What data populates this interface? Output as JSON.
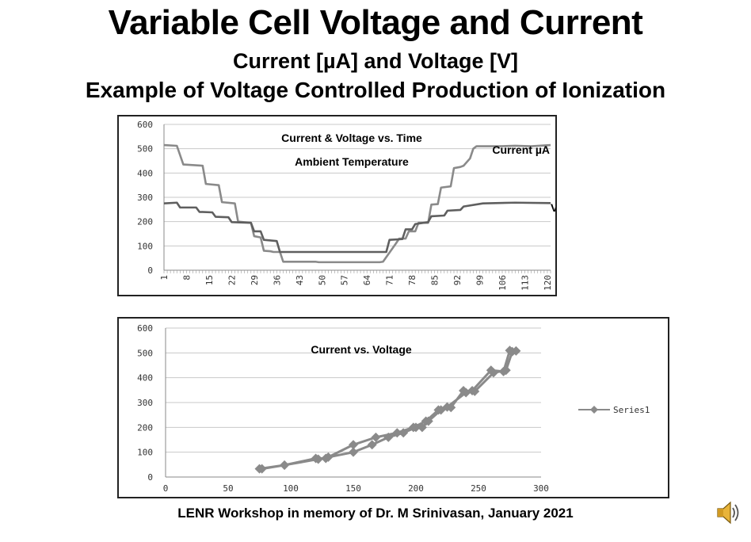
{
  "title": "Variable Cell Voltage and Current",
  "subtitle1": "Current [µA] and Voltage [V]",
  "subtitle2": "Example of Voltage Controlled Production of Ionization",
  "footer": "LENR Workshop in memory of Dr. M Srinivasan, January 2021",
  "speaker_icon": "speaker-icon",
  "colors": {
    "series_dark": "#5f5f5f",
    "series_light": "#8a8a8a",
    "grid": "#c8c8c8"
  },
  "chart_data": [
    {
      "type": "line",
      "title": "Current & Voltage vs. Time",
      "subtitle": "Ambient Temperature",
      "ylim": [
        0,
        600
      ],
      "yticks": [
        0,
        100,
        200,
        300,
        400,
        500,
        600
      ],
      "xticks": [
        1,
        8,
        15,
        22,
        29,
        36,
        43,
        50,
        57,
        64,
        71,
        78,
        85,
        92,
        99,
        106,
        113,
        120
      ],
      "xlabels": [
        "1",
        "8",
        "15",
        "22",
        "29",
        "36",
        "43",
        "50",
        "57",
        "64",
        "71",
        "78",
        "85",
        "92",
        "99",
        "106",
        "113",
        "120"
      ],
      "xlim": [
        1,
        121
      ],
      "grid": true,
      "series": [
        {
          "name": "Current µA",
          "x": [
            1,
            5,
            7,
            13,
            14,
            18,
            19,
            23,
            24,
            28,
            29,
            31,
            32,
            34,
            35,
            37,
            38,
            48,
            49,
            68,
            69,
            73,
            74,
            76,
            77,
            79,
            80,
            83,
            84,
            86,
            87,
            90,
            91,
            93,
            94,
            96,
            97,
            98,
            99,
            105,
            110,
            115,
            121
          ],
          "values": [
            515,
            512,
            435,
            430,
            355,
            350,
            280,
            275,
            200,
            195,
            140,
            135,
            80,
            78,
            75,
            75,
            35,
            35,
            33,
            33,
            35,
            110,
            130,
            130,
            160,
            160,
            195,
            195,
            270,
            272,
            340,
            345,
            420,
            425,
            430,
            460,
            500,
            510,
            510,
            510,
            512,
            510,
            515
          ]
        },
        {
          "name": "Voltage V",
          "x": [
            1,
            5,
            6,
            11,
            12,
            16,
            17,
            21,
            22,
            28,
            29,
            31,
            32,
            36,
            37,
            70,
            71,
            75,
            76,
            78,
            79,
            83,
            84,
            88,
            89,
            93,
            94,
            100,
            110,
            121
          ],
          "values": [
            275,
            278,
            258,
            258,
            240,
            238,
            220,
            218,
            198,
            195,
            160,
            160,
            125,
            120,
            75,
            75,
            125,
            128,
            168,
            168,
            190,
            198,
            222,
            225,
            245,
            248,
            262,
            275,
            278,
            276
          ]
        }
      ]
    },
    {
      "type": "scatter",
      "title": "Current vs. Voltage",
      "xlim": [
        0,
        300
      ],
      "ylim": [
        0,
        600
      ],
      "xticks": [
        0,
        50,
        100,
        150,
        200,
        250,
        300
      ],
      "yticks": [
        0,
        100,
        200,
        300,
        400,
        500,
        600
      ],
      "legend": "right",
      "grid": true,
      "series": [
        {
          "name": "Series1",
          "x": [
            75,
            95,
            122,
            130,
            150,
            165,
            178,
            190,
            200,
            205,
            210,
            220,
            225,
            240,
            245,
            260,
            270,
            275,
            280,
            277,
            272,
            262,
            247,
            238,
            228,
            218,
            208,
            198,
            185,
            168,
            150,
            128,
            120,
            95,
            77
          ],
          "values": [
            33,
            48,
            72,
            80,
            100,
            130,
            160,
            178,
            200,
            200,
            225,
            270,
            282,
            340,
            348,
            430,
            425,
            510,
            508,
            505,
            430,
            420,
            345,
            348,
            280,
            270,
            225,
            200,
            178,
            160,
            130,
            75,
            75,
            48,
            33
          ]
        }
      ]
    }
  ]
}
